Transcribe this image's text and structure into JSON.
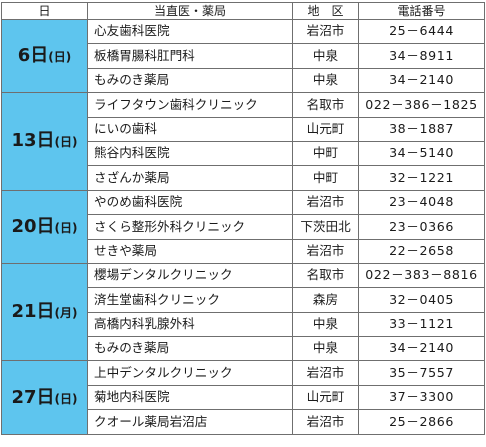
{
  "colors": {
    "day_background": "#5ec5ee",
    "border": "#6f6f6f"
  },
  "header": {
    "day": "日",
    "name": "当直医・薬局",
    "area": "地　区",
    "tel": "電話番号"
  },
  "groups": [
    {
      "day_num": "6日",
      "day_week": "(日)",
      "rows": [
        {
          "name": "心友歯科医院",
          "area": "岩沼市",
          "tel": "25－6444"
        },
        {
          "name": "板橋胃腸科肛門科",
          "area": "中泉",
          "tel": "34－8911"
        },
        {
          "name": "もみのき薬局",
          "area": "中泉",
          "tel": "34－2140"
        }
      ]
    },
    {
      "day_num": "13日",
      "day_week": "(日)",
      "rows": [
        {
          "name": "ライフタウン歯科クリニック",
          "area": "名取市",
          "tel": "022－386－1825"
        },
        {
          "name": "にいの歯科",
          "area": "山元町",
          "tel": "38－1887"
        },
        {
          "name": "熊谷内科医院",
          "area": "中町",
          "tel": "34－5140"
        },
        {
          "name": "さざんか薬局",
          "area": "中町",
          "tel": "32－1221"
        }
      ]
    },
    {
      "day_num": "20日",
      "day_week": "(日)",
      "rows": [
        {
          "name": "やのめ歯科医院",
          "area": "岩沼市",
          "tel": "23－4048"
        },
        {
          "name": "さくら整形外科クリニック",
          "area": "下茨田北",
          "tel": "23－0366"
        },
        {
          "name": "せきや薬局",
          "area": "岩沼市",
          "tel": "22－2658"
        }
      ]
    },
    {
      "day_num": "21日",
      "day_week": "(月)",
      "rows": [
        {
          "name": "櫻場デンタルクリニック",
          "area": "名取市",
          "tel": "022－383－8816"
        },
        {
          "name": "済生堂歯科クリニック",
          "area": "森房",
          "tel": "32－0405"
        },
        {
          "name": "高橋内科乳腺外科",
          "area": "中泉",
          "tel": "33－1121"
        },
        {
          "name": "もみのき薬局",
          "area": "中泉",
          "tel": "34－2140"
        }
      ]
    },
    {
      "day_num": "27日",
      "day_week": "(日)",
      "rows": [
        {
          "name": "上中デンタルクリニック",
          "area": "岩沼市",
          "tel": "35－7557"
        },
        {
          "name": "菊地内科医院",
          "area": "山元町",
          "tel": "37－3300"
        },
        {
          "name": "クオール薬局岩沼店",
          "area": "岩沼市",
          "tel": "25－2866"
        }
      ]
    }
  ]
}
